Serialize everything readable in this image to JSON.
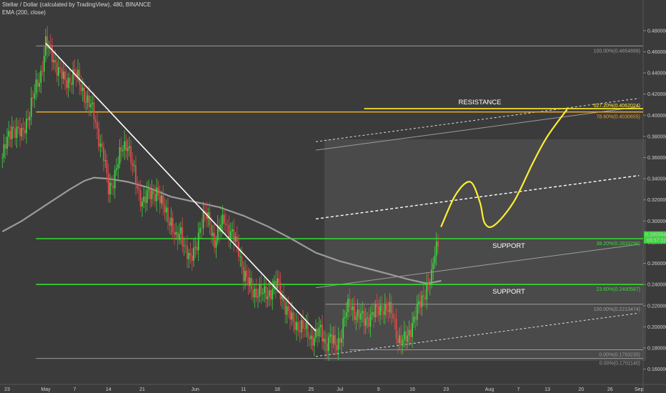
{
  "header": {
    "title": "Stellar / Dollar (calculated by TradingView), 480, BINANCE",
    "indicator": "EMA (200, close)"
  },
  "colors": {
    "background": "#3b3b3b",
    "up": "#3fd33f",
    "down": "#e34b4b",
    "ema": "#9a9a9a",
    "support": "#33dd33",
    "resistance": "#e0a030",
    "trend": "#ffffff",
    "projection": "#ffee33",
    "fib_guide": "#9a9a9a"
  },
  "chart_data": {
    "type": "candlestick",
    "title": "Stellar / Dollar (calculated by TradingView), 480, BINANCE",
    "ylim": [
      0.155,
      0.49
    ],
    "y_ticks": [
      "0.480000",
      "0.460000",
      "0.440000",
      "0.420000",
      "0.400000",
      "0.380000",
      "0.360000",
      "0.340000",
      "0.320000",
      "0.300000",
      "0.280000",
      "0.260000",
      "0.240000",
      "0.220000",
      "0.200000",
      "0.180000",
      "0.160000"
    ],
    "x_ticks": [
      "23",
      "May",
      "7",
      "14",
      "21",
      "Jun",
      "11",
      "18",
      "25",
      "Jul",
      "9",
      "16",
      "23",
      "Aug",
      "7",
      "13",
      "20",
      "26",
      "Sep"
    ],
    "x_tick_days": [
      -8,
      0,
      6,
      13,
      20,
      31,
      41,
      48,
      55,
      61,
      69,
      76,
      83,
      92,
      98,
      104,
      111,
      117,
      123
    ],
    "price_labels": [
      "0.2855641",
      "03:57:11"
    ],
    "price_anchor": [
      1,
      0.468
    ],
    "price_path": [
      [
        -9,
        0.36
      ],
      [
        -7,
        0.39
      ],
      [
        -5,
        0.38
      ],
      [
        -3,
        0.41
      ],
      [
        -1,
        0.44
      ],
      [
        0,
        0.468
      ],
      [
        2,
        0.45
      ],
      [
        4,
        0.43
      ],
      [
        6,
        0.44
      ],
      [
        8,
        0.42
      ],
      [
        10,
        0.4
      ],
      [
        11,
        0.38
      ],
      [
        12,
        0.36
      ],
      [
        13,
        0.33
      ],
      [
        14,
        0.34
      ],
      [
        16,
        0.37
      ],
      [
        17,
        0.375
      ],
      [
        18,
        0.35
      ],
      [
        19,
        0.33
      ],
      [
        20,
        0.32
      ],
      [
        22,
        0.325
      ],
      [
        23,
        0.33
      ],
      [
        24,
        0.315
      ],
      [
        26,
        0.3
      ],
      [
        27,
        0.28
      ],
      [
        28,
        0.29
      ],
      [
        29,
        0.275
      ],
      [
        30,
        0.26
      ],
      [
        31,
        0.275
      ],
      [
        32,
        0.295
      ],
      [
        33,
        0.305
      ],
      [
        34,
        0.3
      ],
      [
        35,
        0.28
      ],
      [
        36,
        0.29
      ],
      [
        37,
        0.305
      ],
      [
        38,
        0.29
      ],
      [
        40,
        0.275
      ],
      [
        41,
        0.25
      ],
      [
        42,
        0.24
      ],
      [
        43,
        0.235
      ],
      [
        45,
        0.23
      ],
      [
        47,
        0.235
      ],
      [
        48,
        0.24
      ],
      [
        49,
        0.23
      ],
      [
        50,
        0.215
      ],
      [
        51,
        0.205
      ],
      [
        53,
        0.2
      ],
      [
        55,
        0.19
      ],
      [
        57,
        0.195
      ],
      [
        58,
        0.185
      ],
      [
        59,
        0.19
      ],
      [
        60,
        0.18
      ],
      [
        61,
        0.19
      ],
      [
        62,
        0.21
      ],
      [
        63,
        0.22
      ],
      [
        64,
        0.215
      ],
      [
        66,
        0.205
      ],
      [
        67,
        0.21
      ],
      [
        69,
        0.215
      ],
      [
        70,
        0.22
      ],
      [
        72,
        0.21
      ],
      [
        73,
        0.19
      ],
      [
        74,
        0.185
      ],
      [
        75,
        0.19
      ],
      [
        76,
        0.205
      ],
      [
        77,
        0.215
      ],
      [
        78,
        0.225
      ],
      [
        79,
        0.24
      ],
      [
        80,
        0.245
      ],
      [
        80.5,
        0.265
      ],
      [
        81,
        0.275
      ],
      [
        81.5,
        0.2855
      ]
    ],
    "ema_path": [
      [
        -9,
        0.29
      ],
      [
        -5,
        0.3
      ],
      [
        0,
        0.315
      ],
      [
        5,
        0.33
      ],
      [
        8,
        0.338
      ],
      [
        10,
        0.341
      ],
      [
        13,
        0.34
      ],
      [
        17,
        0.337
      ],
      [
        21,
        0.332
      ],
      [
        26,
        0.323
      ],
      [
        31,
        0.318
      ],
      [
        36,
        0.313
      ],
      [
        41,
        0.305
      ],
      [
        46,
        0.295
      ],
      [
        51,
        0.283
      ],
      [
        56,
        0.27
      ],
      [
        61,
        0.262
      ],
      [
        66,
        0.256
      ],
      [
        71,
        0.25
      ],
      [
        75,
        0.245
      ],
      [
        79,
        0.241
      ],
      [
        82,
        0.2435
      ]
    ],
    "trend_line": [
      [
        0,
        0.468
      ],
      [
        56,
        0.196
      ]
    ],
    "channel": {
      "base": [
        [
          56,
          0.172
        ],
        [
          123,
          0.213
        ]
      ],
      "offsets": [
        0.065,
        0.13,
        0.195
      ],
      "style": [
        "solid",
        "dashed",
        "solid"
      ],
      "top": [
        [
          56,
          0.375
        ],
        [
          123,
          0.416
        ]
      ]
    },
    "horizontal_levels": [
      {
        "label": "38.20%(0.2833296)",
        "value": 0.2833296,
        "kind": "support",
        "annotation": "SUPPORT",
        "from_day": -2
      },
      {
        "label": "23.60%(0.2400587)",
        "value": 0.2400587,
        "kind": "support",
        "annotation": "SUPPORT",
        "from_day": -2
      },
      {
        "label": "78.60%(0.4030655)",
        "value": 0.4030655,
        "kind": "resistance",
        "annotation": "",
        "from_day": -2
      },
      {
        "label": "527.20%(0.4062024)",
        "value": 0.4062024,
        "kind": "projection",
        "annotation": "RESISTANCE",
        "from_day": 66
      },
      {
        "label": "100.00%(0.4654899)",
        "value": 0.4654899,
        "kind": "fib",
        "annotation": "",
        "from_day": -2
      },
      {
        "label": "100.00%(0.2213474)",
        "value": 0.2213474,
        "kind": "fib",
        "annotation": "",
        "from_day": 58
      },
      {
        "label": "0.00%(0.1783235)",
        "value": 0.1783235,
        "kind": "fib",
        "annotation": "",
        "from_day": 63
      },
      {
        "label": "0.00%(0.1701140)",
        "value": 0.170114,
        "kind": "fib",
        "annotation": "",
        "from_day": -2
      }
    ],
    "annotations": [
      "RESISTANCE",
      "SUPPORT",
      "SUPPORT"
    ],
    "projection_path": [
      [
        82,
        0.295
      ],
      [
        85,
        0.325
      ],
      [
        88,
        0.337
      ],
      [
        90,
        0.318
      ],
      [
        91,
        0.298
      ],
      [
        93,
        0.296
      ],
      [
        97,
        0.318
      ],
      [
        101,
        0.355
      ],
      [
        104,
        0.38
      ],
      [
        108,
        0.405
      ]
    ]
  }
}
